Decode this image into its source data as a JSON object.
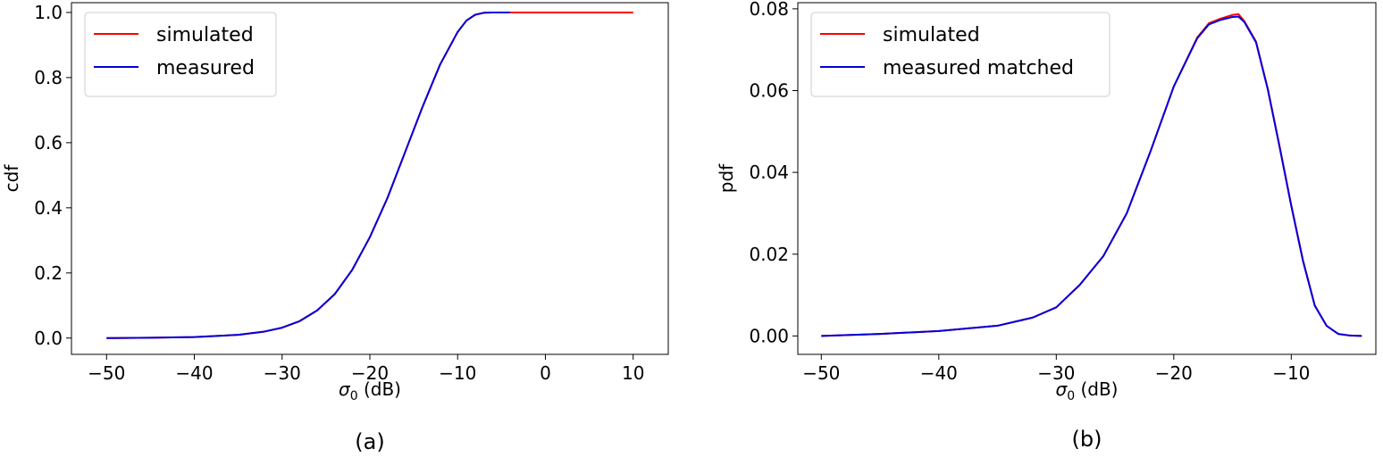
{
  "colors": {
    "simulated": "#ff0000",
    "measured": "#0000dd",
    "frame": "#000000",
    "legend_border": "#cccccc"
  },
  "chart_data": [
    {
      "type": "line",
      "panel_label": "(a)",
      "xlabel_symbol": "σ",
      "xlabel_subscript": "0",
      "xlabel_unit": " (dB)",
      "ylabel": "cdf",
      "xlim": [
        -54,
        14
      ],
      "ylim": [
        -0.05,
        1.03
      ],
      "xticks": [
        -50,
        -40,
        -30,
        -20,
        -10,
        0,
        10
      ],
      "xtick_labels": [
        "−50",
        "−40",
        "−30",
        "−20",
        "−10",
        "0",
        "10"
      ],
      "yticks": [
        0.0,
        0.2,
        0.4,
        0.6,
        0.8,
        1.0
      ],
      "ytick_labels": [
        "0.0",
        "0.2",
        "0.4",
        "0.6",
        "0.8",
        "1.0"
      ],
      "legend_position": "upper-left",
      "series": [
        {
          "name": "simulated",
          "color": "#ff0000",
          "x": [
            -50,
            -45,
            -40,
            -35,
            -32,
            -30,
            -28,
            -26,
            -24,
            -22,
            -20,
            -18,
            -16,
            -14,
            -12,
            -10,
            -9,
            -8,
            -7,
            -6,
            -5,
            -4,
            0,
            5,
            10
          ],
          "y": [
            0.0,
            0.001,
            0.003,
            0.01,
            0.02,
            0.032,
            0.052,
            0.085,
            0.135,
            0.21,
            0.31,
            0.43,
            0.57,
            0.71,
            0.84,
            0.94,
            0.975,
            0.993,
            0.999,
            1.0,
            1.0,
            1.0,
            1.0,
            1.0,
            1.0
          ]
        },
        {
          "name": "measured",
          "color": "#0000dd",
          "x": [
            -50,
            -45,
            -40,
            -35,
            -32,
            -30,
            -28,
            -26,
            -24,
            -22,
            -20,
            -18,
            -16,
            -14,
            -12,
            -10,
            -9,
            -8,
            -7,
            -6,
            -5,
            -4
          ],
          "y": [
            0.0,
            0.001,
            0.003,
            0.01,
            0.02,
            0.032,
            0.052,
            0.085,
            0.135,
            0.21,
            0.31,
            0.43,
            0.57,
            0.71,
            0.84,
            0.94,
            0.975,
            0.993,
            0.999,
            1.0,
            1.0,
            1.0
          ]
        }
      ]
    },
    {
      "type": "line",
      "panel_label": "(b)",
      "xlabel_symbol": "σ",
      "xlabel_subscript": "0",
      "xlabel_unit": " (dB)",
      "ylabel": "pdf",
      "xlim": [
        -52,
        -2.8
      ],
      "ylim": [
        -0.0045,
        0.0815
      ],
      "xticks": [
        -50,
        -40,
        -30,
        -20,
        -10
      ],
      "xtick_labels": [
        "−50",
        "−40",
        "−30",
        "−20",
        "−10"
      ],
      "yticks": [
        0.0,
        0.02,
        0.04,
        0.06,
        0.08
      ],
      "ytick_labels": [
        "0.00",
        "0.02",
        "0.04",
        "0.06",
        "0.08"
      ],
      "legend_position": "upper-left",
      "series": [
        {
          "name": "simulated",
          "color": "#ff0000",
          "x": [
            -50,
            -45,
            -40,
            -35,
            -32,
            -30,
            -28,
            -26,
            -24,
            -22,
            -20,
            -18,
            -17,
            -16,
            -15,
            -14.5,
            -14,
            -13,
            -12,
            -11,
            -10,
            -9,
            -8,
            -7,
            -6.5,
            -6,
            -5,
            -4
          ],
          "y": [
            0.0,
            0.0005,
            0.0012,
            0.0025,
            0.0045,
            0.007,
            0.0125,
            0.0195,
            0.03,
            0.045,
            0.061,
            0.073,
            0.0765,
            0.0776,
            0.0785,
            0.0787,
            0.077,
            0.072,
            0.0605,
            0.0465,
            0.032,
            0.0185,
            0.0075,
            0.0025,
            0.0015,
            0.0005,
            0.0001,
            0.0
          ]
        },
        {
          "name": "measured matched",
          "color": "#0000dd",
          "x": [
            -50,
            -45,
            -40,
            -35,
            -32,
            -30,
            -28,
            -26,
            -24,
            -22,
            -20,
            -18,
            -17,
            -16,
            -15,
            -14.5,
            -14,
            -13,
            -12,
            -11,
            -10,
            -9,
            -8,
            -7,
            -6.5,
            -6,
            -5,
            -4
          ],
          "y": [
            0.0,
            0.0005,
            0.0012,
            0.0025,
            0.0045,
            0.007,
            0.0125,
            0.0195,
            0.03,
            0.045,
            0.061,
            0.0728,
            0.0762,
            0.0773,
            0.078,
            0.0781,
            0.0768,
            0.0718,
            0.0603,
            0.0463,
            0.0318,
            0.0183,
            0.0074,
            0.0025,
            0.0015,
            0.0005,
            0.0001,
            0.0
          ]
        }
      ]
    }
  ]
}
